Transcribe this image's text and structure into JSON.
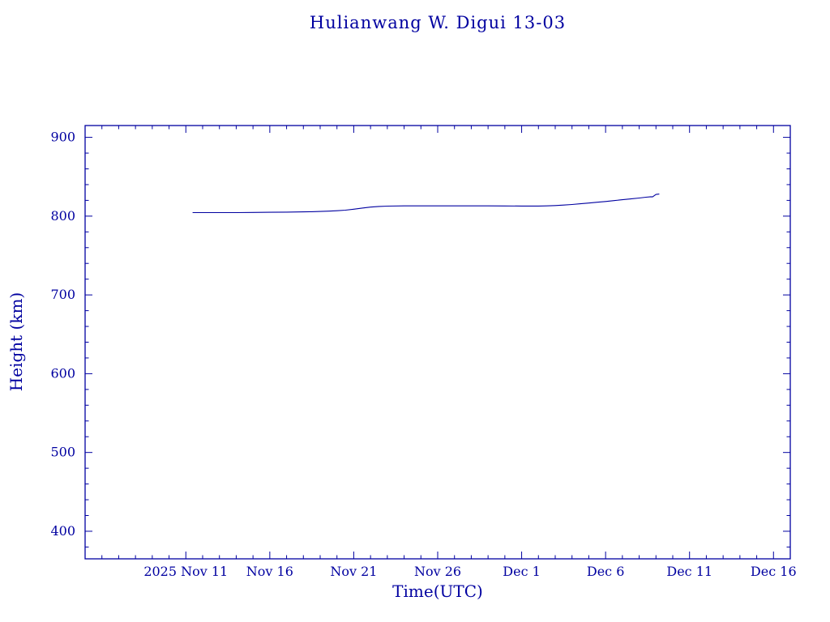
{
  "chart_data": {
    "type": "line",
    "title": "Hulianwang W. Digui 13-03",
    "xlabel": "Time(UTC)",
    "ylabel": "Height (km)",
    "grid": false,
    "legend": null,
    "line_color": "#0000a0",
    "x_unit": "days since 2025 Nov 11",
    "xlim": [
      -6,
      36
    ],
    "ylim": [
      365,
      915
    ],
    "x_minor_step": 1,
    "y_minor_step": 20,
    "x_ticks": [
      {
        "value": 0,
        "label": "2025 Nov 11"
      },
      {
        "value": 5,
        "label": "Nov 16"
      },
      {
        "value": 10,
        "label": "Nov 21"
      },
      {
        "value": 15,
        "label": "Nov 26"
      },
      {
        "value": 20,
        "label": "Dec  1"
      },
      {
        "value": 25,
        "label": "Dec  6"
      },
      {
        "value": 30,
        "label": "Dec 11"
      },
      {
        "value": 35,
        "label": "Dec 16"
      }
    ],
    "y_ticks": [
      {
        "value": 400,
        "label": "400"
      },
      {
        "value": 500,
        "label": "500"
      },
      {
        "value": 600,
        "label": "600"
      },
      {
        "value": 700,
        "label": "700"
      },
      {
        "value": 800,
        "label": "800"
      },
      {
        "value": 900,
        "label": "900"
      }
    ],
    "series": [
      {
        "name": "height",
        "x": [
          0.4,
          1,
          2,
          3,
          4,
          5,
          6,
          7,
          7.5,
          8,
          8.5,
          9,
          9.5,
          10,
          10.5,
          11,
          11.5,
          12,
          13,
          14,
          15,
          16,
          17,
          18,
          19,
          20,
          20.5,
          21,
          21.5,
          22,
          22.5,
          23,
          23.5,
          24,
          24.5,
          25,
          25.5,
          26,
          26.5,
          27,
          27.4,
          27.7,
          27.8,
          28.0,
          28.2
        ],
        "y": [
          804.5,
          804.5,
          804.5,
          804.5,
          804.7,
          804.9,
          805.1,
          805.4,
          805.6,
          805.9,
          806.3,
          806.8,
          807.6,
          808.8,
          810.2,
          811.5,
          812.3,
          812.7,
          813.0,
          813.0,
          813.0,
          813.0,
          813.0,
          813.0,
          812.9,
          812.8,
          812.8,
          812.8,
          813.0,
          813.4,
          814.0,
          814.8,
          815.7,
          816.6,
          817.6,
          818.6,
          819.7,
          820.8,
          821.9,
          823.0,
          824.0,
          824.6,
          824.4,
          827.5,
          828.0
        ]
      }
    ]
  },
  "colors": {
    "accent": "#0000a0",
    "background": "#ffffff"
  }
}
